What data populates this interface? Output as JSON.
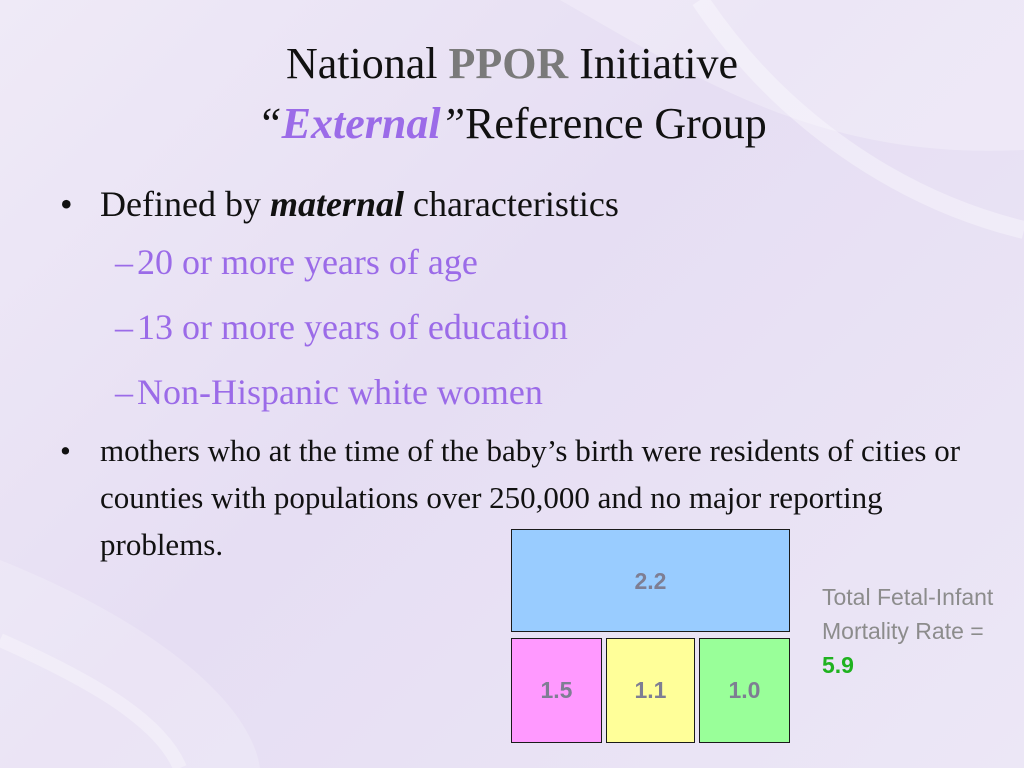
{
  "title": {
    "line1_pre": "National ",
    "line1_em": "PPOR",
    "line1_post": " Initiative",
    "line2_open_quote": "“",
    "line2_em": "External",
    "line2_close_quote": "”",
    "line2_post": "Reference Group"
  },
  "bullets": {
    "b1_pre": "Defined by ",
    "b1_em": "maternal",
    "b1_post": " characteristics",
    "sub": [
      "20 or more years of age",
      "13 or more years of education",
      "Non-Hispanic white women"
    ],
    "b2": "mothers who at the time of the baby’s birth were residents of cities or counties with populations over 250,000 and no major reporting problems."
  },
  "boxes": {
    "top": "2.2",
    "b1": "1.5",
    "b2": "1.1",
    "b3": "1.0"
  },
  "rate": {
    "label": "Total Fetal-Infant Mortality Rate = ",
    "value": "5.9"
  }
}
